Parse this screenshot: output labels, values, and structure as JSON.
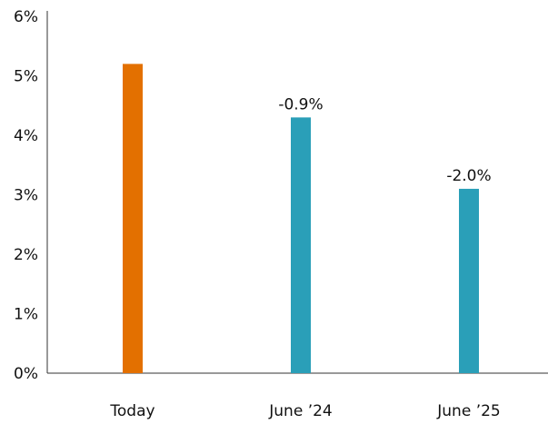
{
  "chart_data": {
    "type": "bar",
    "categories": [
      "Today",
      "June ’24",
      "June ’25"
    ],
    "values": [
      5.2,
      4.3,
      3.1
    ],
    "data_labels": [
      "",
      "-0.9%",
      "-2.0%"
    ],
    "bar_colors": [
      "#e37000",
      "#2a9fb8",
      "#2a9fb8"
    ],
    "y_ticks": [
      "0%",
      "1%",
      "2%",
      "3%",
      "4%",
      "5%",
      "6%"
    ],
    "ylim": [
      0,
      6
    ],
    "title": "",
    "xlabel": "",
    "ylabel": "",
    "grid": false,
    "legend": "none"
  },
  "colors": {
    "axis": "#333333",
    "text": "#111111"
  }
}
